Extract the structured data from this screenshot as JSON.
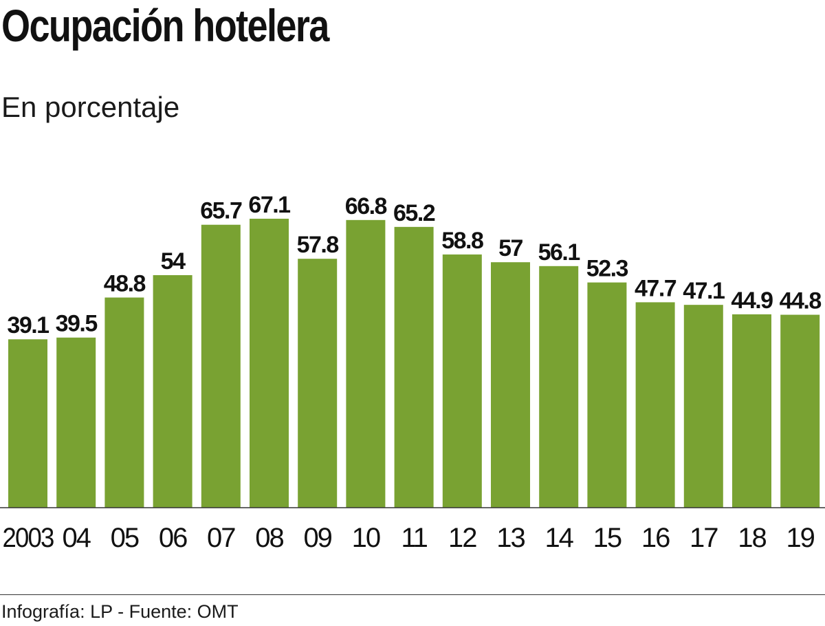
{
  "title": "Ocupación hotelera",
  "subtitle": "En porcentaje",
  "source": "Infografía: LP - Fuente: OMT",
  "colors": {
    "bar": "#79a232",
    "text": "#111111",
    "axis": "#333333"
  },
  "chart_data": {
    "type": "bar",
    "title": "Ocupación hotelera",
    "ylabel": "En porcentaje",
    "xlabel": "",
    "ylim": [
      0,
      70
    ],
    "categories": [
      "2003",
      "04",
      "05",
      "06",
      "07",
      "08",
      "09",
      "10",
      "11",
      "12",
      "13",
      "14",
      "15",
      "16",
      "17",
      "18",
      "19"
    ],
    "values": [
      39.1,
      39.5,
      48.8,
      54,
      65.7,
      67.1,
      57.8,
      66.8,
      65.2,
      58.8,
      57,
      56.1,
      52.3,
      47.7,
      47.1,
      44.9,
      44.8
    ],
    "value_labels": [
      "39.1",
      "39.5",
      "48.8",
      "54",
      "65.7",
      "67.1",
      "57.8",
      "66.8",
      "65.2",
      "58.8",
      "57",
      "56.1",
      "52.3",
      "47.7",
      "47.1",
      "44.9",
      "44.8"
    ]
  }
}
